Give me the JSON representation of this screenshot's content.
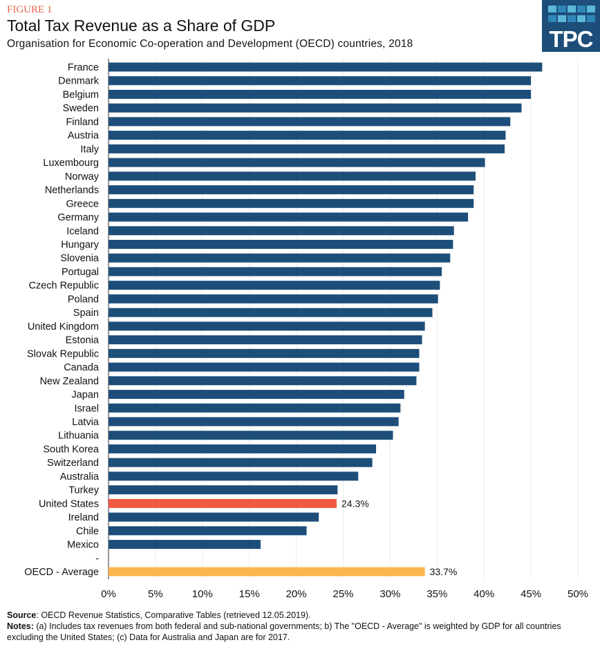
{
  "header": {
    "figure_label": "FIGURE 1",
    "title": "Total Tax Revenue as a Share of GDP",
    "subtitle": "Organisation for Economic Co-operation and Development (OECD) countries, 2018",
    "logo_text": "TPC"
  },
  "chart_data": {
    "type": "bar",
    "orientation": "horizontal",
    "title": "Total Tax Revenue as a Share of GDP",
    "categories": [
      "France",
      "Denmark",
      "Belgium",
      "Sweden",
      "Finland",
      "Austria",
      "Italy",
      "Luxembourg",
      "Norway",
      "Netherlands",
      "Greece",
      "Germany",
      "Iceland",
      "Hungary",
      "Slovenia",
      "Portugal",
      "Czech Republic",
      "Poland",
      "Spain",
      "United Kingdom",
      "Estonia",
      "Slovak Republic",
      "Canada",
      "New Zealand",
      "Japan",
      "Israel",
      "Latvia",
      "Lithuania",
      "South Korea",
      "Switzerland",
      "Australia",
      "Turkey",
      "United States",
      "Ireland",
      "Chile",
      "Mexico",
      "-",
      "OECD - Average"
    ],
    "values": [
      46.2,
      45.0,
      45.0,
      44.0,
      42.8,
      42.3,
      42.2,
      40.1,
      39.1,
      38.9,
      38.9,
      38.3,
      36.8,
      36.7,
      36.4,
      35.5,
      35.3,
      35.1,
      34.5,
      33.7,
      33.4,
      33.1,
      33.1,
      32.8,
      31.5,
      31.1,
      30.9,
      30.3,
      28.5,
      28.1,
      26.6,
      24.4,
      24.3,
      22.4,
      21.1,
      16.2,
      null,
      33.7
    ],
    "data_labels": {
      "United States": "24.3%",
      "OECD - Average": "33.7%"
    },
    "xlim": [
      0,
      50
    ],
    "xticks": [
      "0%",
      "5%",
      "10%",
      "15%",
      "20%",
      "25%",
      "30%",
      "35%",
      "40%",
      "45%",
      "50%"
    ],
    "grid": true,
    "colors": {
      "default": "#1d4e7a",
      "United States": "#ef5a40",
      "OECD - Average": "#fbb54a"
    }
  },
  "footer": {
    "source_label": "Source",
    "source_text": ": OECD Revenue Statistics, Comparative Tables (retrieved 12.05.2019).",
    "notes_label": "Notes:",
    "notes_text": " (a) Includes tax revenues from both federal and sub-national governments; b) The \"OECD - Average\" is weighted by GDP for all countries excluding the United States; (c) Data for Australia and Japan are for 2017."
  }
}
